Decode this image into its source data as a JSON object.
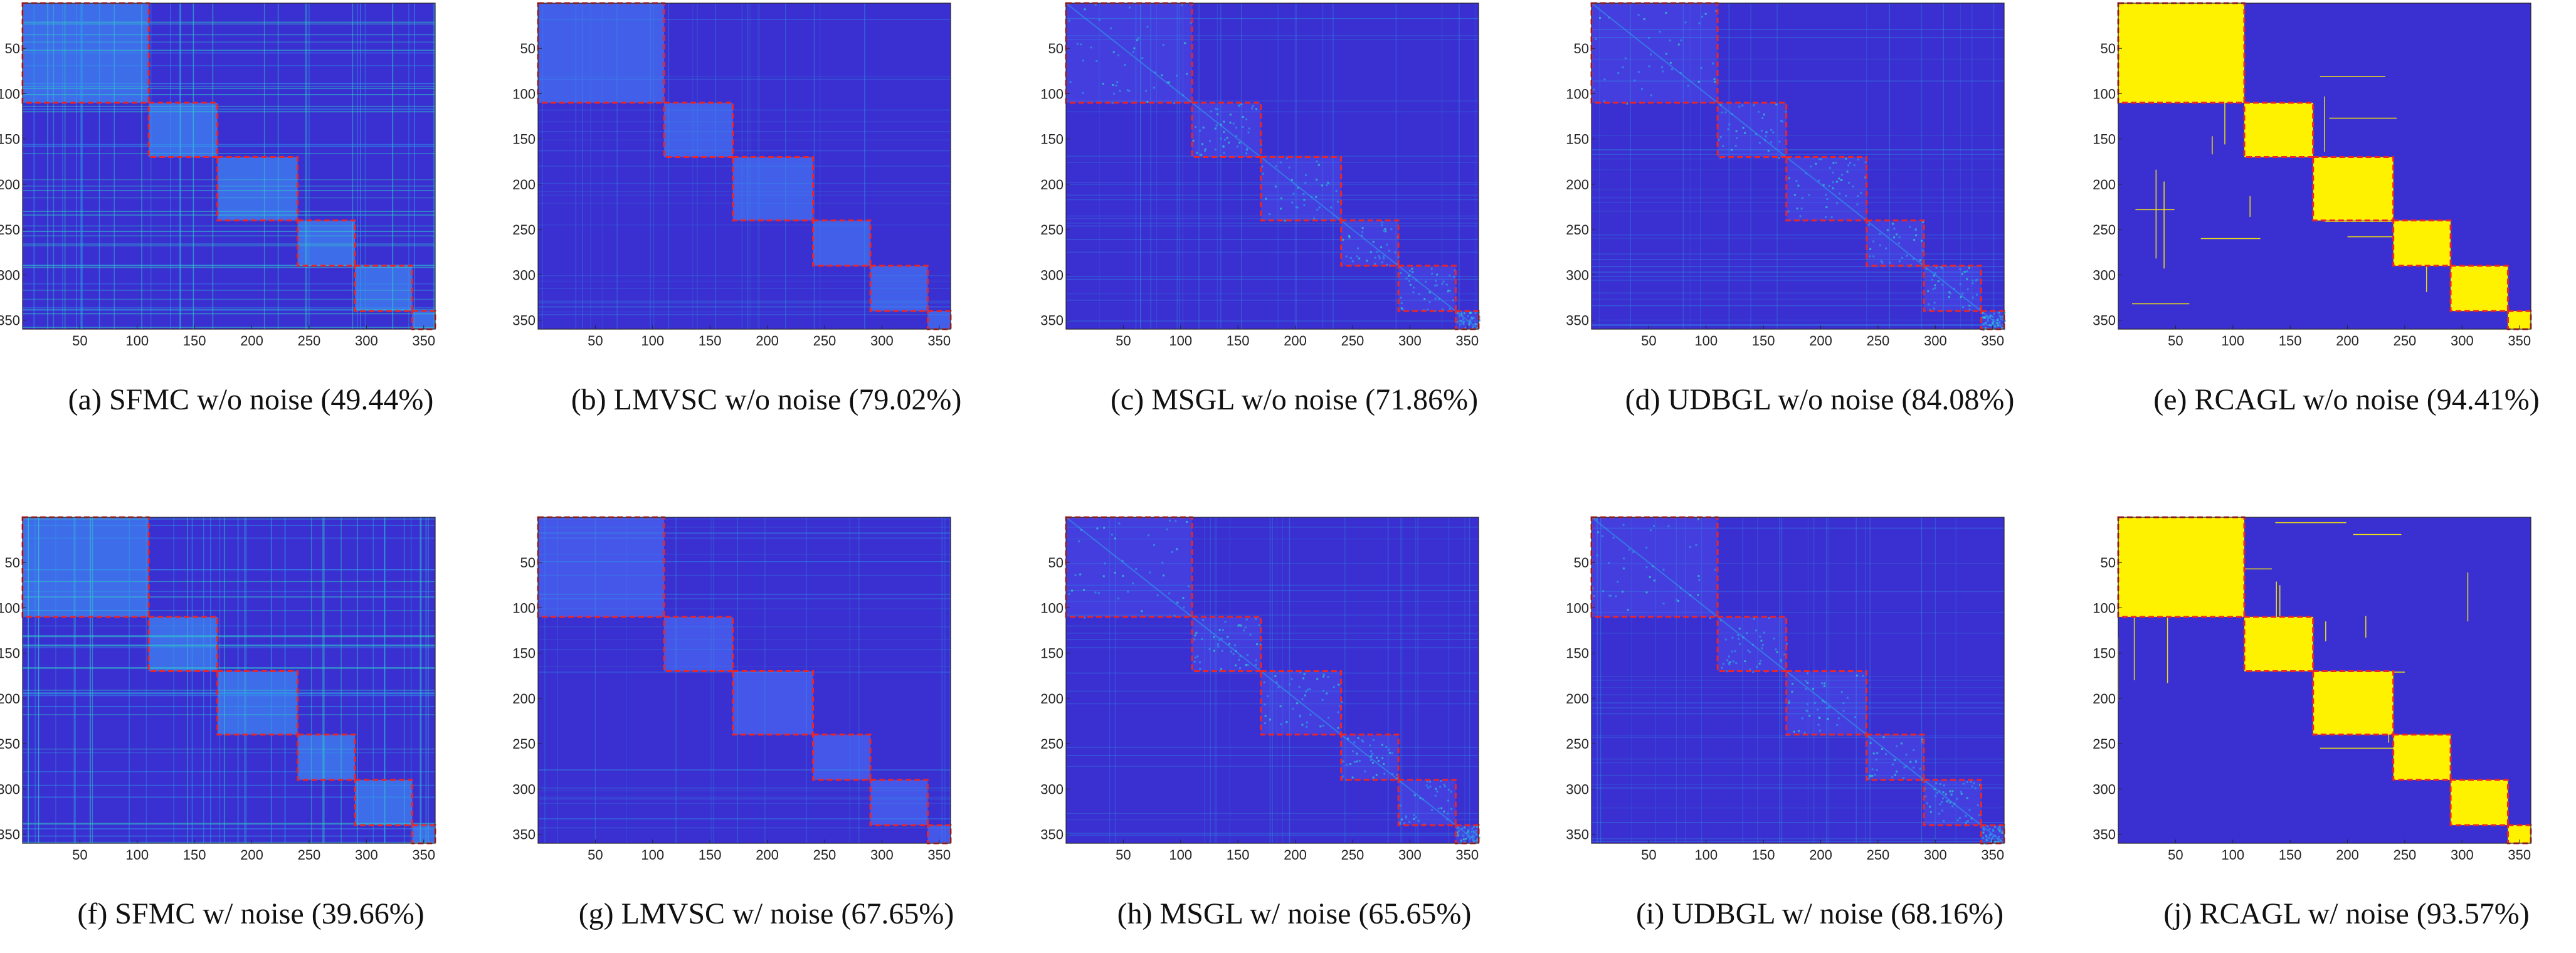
{
  "figure": {
    "colors": {
      "background": "#3a2fd0",
      "block_low": "#4a48e8",
      "block_high": "#2f9bea",
      "cyan": "#2fd6c8",
      "yellow": "#fff200",
      "box": "#e8262b",
      "axis": "#262626"
    },
    "axis_ticks": {
      "x": [
        "50",
        "100",
        "150",
        "200",
        "250",
        "300",
        "350"
      ],
      "y": [
        "50",
        "100",
        "150",
        "200",
        "250",
        "300",
        "350"
      ]
    },
    "cluster_boundaries": [
      0,
      110,
      170,
      240,
      290,
      340,
      360
    ],
    "matrix_size": 360
  },
  "chart_data": [
    {
      "type": "heatmap",
      "caption": "(a) SFMC w/o noise (49.44%)",
      "method": "SFMC",
      "noise": "w/o noise",
      "accuracy_percent": 49.44,
      "style": "sfmc",
      "xlim": [
        0,
        360
      ],
      "ylim": [
        0,
        360
      ],
      "xticks": [
        50,
        100,
        150,
        200,
        250,
        300,
        350
      ],
      "yticks": [
        50,
        100,
        150,
        200,
        250,
        300,
        350
      ]
    },
    {
      "type": "heatmap",
      "caption": "(b) LMVSC w/o noise (79.02%)",
      "method": "LMVSC",
      "noise": "w/o noise",
      "accuracy_percent": 79.02,
      "style": "lmvsc",
      "xlim": [
        0,
        360
      ],
      "ylim": [
        0,
        360
      ],
      "xticks": [
        50,
        100,
        150,
        200,
        250,
        300,
        350
      ],
      "yticks": [
        50,
        100,
        150,
        200,
        250,
        300,
        350
      ]
    },
    {
      "type": "heatmap",
      "caption": "(c) MSGL w/o noise (71.86%)",
      "method": "MSGL",
      "noise": "w/o noise",
      "accuracy_percent": 71.86,
      "style": "msgl",
      "xlim": [
        0,
        360
      ],
      "ylim": [
        0,
        360
      ],
      "xticks": [
        50,
        100,
        150,
        200,
        250,
        300,
        350
      ],
      "yticks": [
        50,
        100,
        150,
        200,
        250,
        300,
        350
      ]
    },
    {
      "type": "heatmap",
      "caption": "(d) UDBGL w/o noise (84.08%)",
      "method": "UDBGL",
      "noise": "w/o noise",
      "accuracy_percent": 84.08,
      "style": "udbgl",
      "xlim": [
        0,
        360
      ],
      "ylim": [
        0,
        360
      ],
      "xticks": [
        50,
        100,
        150,
        200,
        250,
        300,
        350
      ],
      "yticks": [
        50,
        100,
        150,
        200,
        250,
        300,
        350
      ]
    },
    {
      "type": "heatmap",
      "caption": "(e) RCAGL w/o noise (94.41%)",
      "method": "RCAGL",
      "noise": "w/o noise",
      "accuracy_percent": 94.41,
      "style": "rcagl",
      "xlim": [
        0,
        360
      ],
      "ylim": [
        0,
        360
      ],
      "xticks": [
        50,
        100,
        150,
        200,
        250,
        300,
        350
      ],
      "yticks": [
        50,
        100,
        150,
        200,
        250,
        300,
        350
      ]
    },
    {
      "type": "heatmap",
      "caption": "(f) SFMC w/ noise (39.66%)",
      "method": "SFMC",
      "noise": "w/ noise",
      "accuracy_percent": 39.66,
      "style": "sfmc",
      "xlim": [
        0,
        360
      ],
      "ylim": [
        0,
        360
      ],
      "xticks": [
        50,
        100,
        150,
        200,
        250,
        300,
        350
      ],
      "yticks": [
        50,
        100,
        150,
        200,
        250,
        300,
        350
      ]
    },
    {
      "type": "heatmap",
      "caption": "(g) LMVSC w/ noise (67.65%)",
      "method": "LMVSC",
      "noise": "w/ noise",
      "accuracy_percent": 67.65,
      "style": "lmvsc",
      "xlim": [
        0,
        360
      ],
      "ylim": [
        0,
        360
      ],
      "xticks": [
        50,
        100,
        150,
        200,
        250,
        300,
        350
      ],
      "yticks": [
        50,
        100,
        150,
        200,
        250,
        300,
        350
      ]
    },
    {
      "type": "heatmap",
      "caption": "(h) MSGL w/ noise (65.65%)",
      "method": "MSGL",
      "noise": "w/ noise",
      "accuracy_percent": 65.65,
      "style": "msgl",
      "xlim": [
        0,
        360
      ],
      "ylim": [
        0,
        360
      ],
      "xticks": [
        50,
        100,
        150,
        200,
        250,
        300,
        350
      ],
      "yticks": [
        50,
        100,
        150,
        200,
        250,
        300,
        350
      ]
    },
    {
      "type": "heatmap",
      "caption": "(i) UDBGL w/ noise (68.16%)",
      "method": "UDBGL",
      "noise": "w/ noise",
      "accuracy_percent": 68.16,
      "style": "udbgl",
      "xlim": [
        0,
        360
      ],
      "ylim": [
        0,
        360
      ],
      "xticks": [
        50,
        100,
        150,
        200,
        250,
        300,
        350
      ],
      "yticks": [
        50,
        100,
        150,
        200,
        250,
        300,
        350
      ]
    },
    {
      "type": "heatmap",
      "caption": "(j) RCAGL w/ noise (93.57%)",
      "method": "RCAGL",
      "noise": "w/ noise",
      "accuracy_percent": 93.57,
      "style": "rcagl",
      "xlim": [
        0,
        360
      ],
      "ylim": [
        0,
        360
      ],
      "xticks": [
        50,
        100,
        150,
        200,
        250,
        300,
        350
      ],
      "yticks": [
        50,
        100,
        150,
        200,
        250,
        300,
        350
      ]
    }
  ]
}
